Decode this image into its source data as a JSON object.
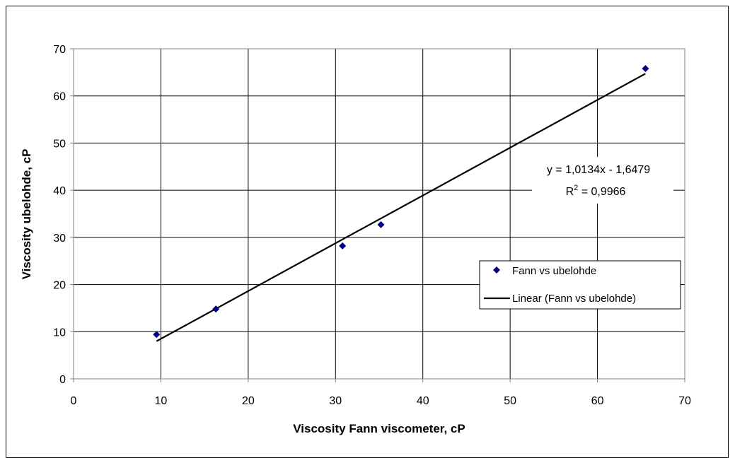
{
  "chart_data": {
    "type": "scatter",
    "xlabel": "Viscosity Fann viscometer, cP",
    "ylabel": "Viscosity ubelohde, cP",
    "xlim": [
      0,
      70
    ],
    "ylim": [
      0,
      70
    ],
    "xticks": [
      0,
      10,
      20,
      30,
      40,
      50,
      60,
      70
    ],
    "yticks": [
      0,
      10,
      20,
      30,
      40,
      50,
      60,
      70
    ],
    "grid": true,
    "legend_position": "right",
    "series": [
      {
        "name": "Fann vs ubelohde",
        "marker": "diamond",
        "color": "#000080",
        "points": [
          {
            "x": 9.5,
            "y": 9.4
          },
          {
            "x": 16.3,
            "y": 14.8
          },
          {
            "x": 30.8,
            "y": 28.2
          },
          {
            "x": 35.2,
            "y": 32.7
          },
          {
            "x": 65.5,
            "y": 65.8
          }
        ]
      }
    ],
    "trendline": {
      "name": "Linear (Fann vs ubelohde)",
      "type": "linear",
      "slope": 1.0134,
      "intercept": -1.6479,
      "x_range": [
        9.5,
        65.5
      ],
      "color": "#000000"
    },
    "annotations": {
      "equation": "y = 1,0134x - 1,6479",
      "r2_prefix": "R",
      "r2_sup": "2",
      "r2_value": " = 0,9966"
    }
  }
}
